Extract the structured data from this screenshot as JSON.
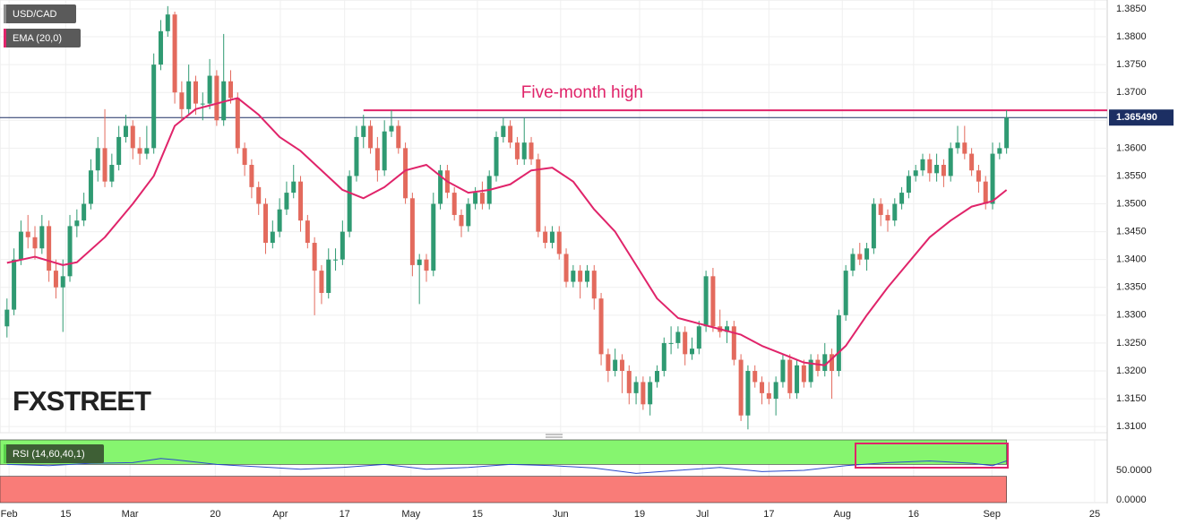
{
  "chart_data": [
    {
      "type": "candlestick",
      "name": "USD/CAD",
      "up_color": "#2f9a72",
      "down_color": "#e36a5d",
      "watermark": "FXSTREET",
      "xlim": [
        -1,
        157.4
      ],
      "ylim": [
        1.3089,
        1.3866
      ],
      "grid": true,
      "xticks": [
        {
          "value": 0.3,
          "label": "Feb"
        },
        {
          "value": 8.4,
          "label": "15"
        },
        {
          "value": 17.6,
          "label": "Mar"
        },
        {
          "value": 29.8,
          "label": "20"
        },
        {
          "value": 39.1,
          "label": "Apr"
        },
        {
          "value": 48.3,
          "label": "17"
        },
        {
          "value": 57.8,
          "label": "May"
        },
        {
          "value": 67.3,
          "label": "15"
        },
        {
          "value": 79.2,
          "label": "Jun"
        },
        {
          "value": 90.5,
          "label": "19"
        },
        {
          "value": 99.5,
          "label": "Jul"
        },
        {
          "value": 109,
          "label": "17"
        },
        {
          "value": 119.5,
          "label": "Aug"
        },
        {
          "value": 129.7,
          "label": "16"
        },
        {
          "value": 140.9,
          "label": "Sep"
        },
        {
          "value": 155.6,
          "label": "25"
        }
      ],
      "yticks": [
        {
          "value": 1.31,
          "label": "1.3100"
        },
        {
          "value": 1.315,
          "label": "1.3150"
        },
        {
          "value": 1.32,
          "label": "1.3200"
        },
        {
          "value": 1.325,
          "label": "1.3250"
        },
        {
          "value": 1.33,
          "label": "1.3300"
        },
        {
          "value": 1.335,
          "label": "1.3350"
        },
        {
          "value": 1.34,
          "label": "1.3400"
        },
        {
          "value": 1.345,
          "label": "1.3450"
        },
        {
          "value": 1.35,
          "label": "1.3500"
        },
        {
          "value": 1.355,
          "label": "1.3550"
        },
        {
          "value": 1.36,
          "label": "1.3600"
        },
        {
          "value": 1.365,
          "label": "1.3650"
        },
        {
          "value": 1.37,
          "label": "1.3700"
        },
        {
          "value": 1.375,
          "label": "1.3750"
        },
        {
          "value": 1.38,
          "label": "1.3800"
        },
        {
          "value": 1.385,
          "label": "1.3850"
        }
      ],
      "last_price": {
        "value": 1.36549,
        "label": "1.365490",
        "color": "#1c2f63"
      },
      "annotation": {
        "text": "Five-month high",
        "value": 1.3668,
        "x": 51,
        "color": "#e0246a"
      },
      "ema": {
        "name": "EMA (20,0)",
        "color": "#e0246a",
        "x": [
          0,
          4,
          8,
          10,
          14,
          18,
          21,
          24,
          27,
          30,
          33,
          36,
          39,
          42,
          45,
          48,
          51,
          54,
          57,
          60,
          63,
          66,
          69,
          72,
          75,
          78,
          81,
          84,
          87,
          90,
          93,
          96,
          99,
          102,
          105,
          108,
          111,
          114,
          117,
          120,
          123,
          126,
          129,
          132,
          135,
          138,
          141,
          143
        ],
        "values": [
          1.3394,
          1.3405,
          1.339,
          1.3395,
          1.344,
          1.35,
          1.355,
          1.364,
          1.367,
          1.368,
          1.369,
          1.366,
          1.362,
          1.3595,
          1.356,
          1.3525,
          1.351,
          1.353,
          1.356,
          1.357,
          1.354,
          1.352,
          1.3525,
          1.3535,
          1.356,
          1.3565,
          1.354,
          1.349,
          1.345,
          1.339,
          1.333,
          1.3295,
          1.3285,
          1.3275,
          1.3265,
          1.3245,
          1.323,
          1.3215,
          1.321,
          1.3245,
          1.33,
          1.335,
          1.3395,
          1.344,
          1.347,
          1.3495,
          1.3505,
          1.3525
        ]
      },
      "ohlc": [
        [
          1.328,
          1.333,
          1.326,
          1.331
        ],
        [
          1.331,
          1.342,
          1.33,
          1.34
        ],
        [
          1.34,
          1.347,
          1.339,
          1.345
        ],
        [
          1.345,
          1.348,
          1.342,
          1.344
        ],
        [
          1.344,
          1.346,
          1.34,
          1.342
        ],
        [
          1.342,
          1.348,
          1.341,
          1.346
        ],
        [
          1.346,
          1.347,
          1.336,
          1.338
        ],
        [
          1.338,
          1.34,
          1.333,
          1.335
        ],
        [
          1.335,
          1.34,
          1.327,
          1.337
        ],
        [
          1.337,
          1.348,
          1.336,
          1.346
        ],
        [
          1.346,
          1.349,
          1.344,
          1.347
        ],
        [
          1.347,
          1.352,
          1.346,
          1.35
        ],
        [
          1.35,
          1.358,
          1.349,
          1.356
        ],
        [
          1.356,
          1.362,
          1.354,
          1.36
        ],
        [
          1.36,
          1.367,
          1.353,
          1.354
        ],
        [
          1.354,
          1.359,
          1.353,
          1.357
        ],
        [
          1.357,
          1.364,
          1.356,
          1.362
        ],
        [
          1.362,
          1.366,
          1.361,
          1.364
        ],
        [
          1.364,
          1.365,
          1.358,
          1.36
        ],
        [
          1.36,
          1.362,
          1.357,
          1.359
        ],
        [
          1.359,
          1.364,
          1.358,
          1.36
        ],
        [
          1.36,
          1.377,
          1.359,
          1.375
        ],
        [
          1.375,
          1.383,
          1.374,
          1.381
        ],
        [
          1.381,
          1.3855,
          1.38,
          1.384
        ],
        [
          1.384,
          1.3845,
          1.368,
          1.37
        ],
        [
          1.37,
          1.372,
          1.365,
          1.367
        ],
        [
          1.367,
          1.375,
          1.366,
          1.372
        ],
        [
          1.372,
          1.373,
          1.366,
          1.368
        ],
        [
          1.368,
          1.37,
          1.365,
          1.368
        ],
        [
          1.368,
          1.376,
          1.367,
          1.373
        ],
        [
          1.373,
          1.374,
          1.364,
          1.365
        ],
        [
          1.365,
          1.3805,
          1.364,
          1.372
        ],
        [
          1.372,
          1.374,
          1.368,
          1.369
        ],
        [
          1.369,
          1.37,
          1.359,
          1.36
        ],
        [
          1.36,
          1.361,
          1.355,
          1.357
        ],
        [
          1.357,
          1.358,
          1.351,
          1.353
        ],
        [
          1.353,
          1.354,
          1.348,
          1.35
        ],
        [
          1.35,
          1.351,
          1.341,
          1.343
        ],
        [
          1.343,
          1.347,
          1.342,
          1.345
        ],
        [
          1.345,
          1.351,
          1.344,
          1.349
        ],
        [
          1.349,
          1.354,
          1.348,
          1.352
        ],
        [
          1.352,
          1.357,
          1.351,
          1.354
        ],
        [
          1.354,
          1.355,
          1.345,
          1.347
        ],
        [
          1.347,
          1.348,
          1.342,
          1.343
        ],
        [
          1.343,
          1.344,
          1.33,
          1.338
        ],
        [
          1.338,
          1.339,
          1.332,
          1.334
        ],
        [
          1.334,
          1.342,
          1.333,
          1.34
        ],
        [
          1.34,
          1.342,
          1.338,
          1.34
        ],
        [
          1.34,
          1.347,
          1.339,
          1.345
        ],
        [
          1.345,
          1.356,
          1.344,
          1.355
        ],
        [
          1.355,
          1.364,
          1.354,
          1.362
        ],
        [
          1.362,
          1.366,
          1.36,
          1.364
        ],
        [
          1.364,
          1.365,
          1.359,
          1.36
        ],
        [
          1.36,
          1.362,
          1.354,
          1.356
        ],
        [
          1.356,
          1.365,
          1.355,
          1.363
        ],
        [
          1.363,
          1.3668,
          1.362,
          1.364
        ],
        [
          1.364,
          1.365,
          1.359,
          1.36
        ],
        [
          1.36,
          1.361,
          1.35,
          1.351
        ],
        [
          1.351,
          1.352,
          1.337,
          1.339
        ],
        [
          1.339,
          1.341,
          1.332,
          1.34
        ],
        [
          1.34,
          1.341,
          1.336,
          1.338
        ],
        [
          1.338,
          1.352,
          1.337,
          1.35
        ],
        [
          1.35,
          1.357,
          1.349,
          1.356
        ],
        [
          1.356,
          1.357,
          1.351,
          1.352
        ],
        [
          1.352,
          1.353,
          1.347,
          1.348
        ],
        [
          1.348,
          1.349,
          1.344,
          1.346
        ],
        [
          1.346,
          1.351,
          1.345,
          1.35
        ],
        [
          1.35,
          1.353,
          1.349,
          1.352
        ],
        [
          1.352,
          1.354,
          1.349,
          1.35
        ],
        [
          1.35,
          1.356,
          1.349,
          1.355
        ],
        [
          1.355,
          1.363,
          1.354,
          1.362
        ],
        [
          1.362,
          1.3655,
          1.361,
          1.364
        ],
        [
          1.364,
          1.365,
          1.36,
          1.361
        ],
        [
          1.361,
          1.362,
          1.357,
          1.358
        ],
        [
          1.358,
          1.3655,
          1.357,
          1.361
        ],
        [
          1.361,
          1.362,
          1.357,
          1.358
        ],
        [
          1.358,
          1.359,
          1.344,
          1.345
        ],
        [
          1.345,
          1.346,
          1.342,
          1.343
        ],
        [
          1.343,
          1.346,
          1.342,
          1.345
        ],
        [
          1.345,
          1.346,
          1.34,
          1.341
        ],
        [
          1.341,
          1.342,
          1.335,
          1.336
        ],
        [
          1.336,
          1.339,
          1.335,
          1.338
        ],
        [
          1.338,
          1.339,
          1.333,
          1.336
        ],
        [
          1.336,
          1.339,
          1.335,
          1.338
        ],
        [
          1.338,
          1.339,
          1.331,
          1.333
        ],
        [
          1.333,
          1.334,
          1.321,
          1.323
        ],
        [
          1.323,
          1.324,
          1.318,
          1.32
        ],
        [
          1.32,
          1.324,
          1.319,
          1.322
        ],
        [
          1.322,
          1.323,
          1.316,
          1.32
        ],
        [
          1.32,
          1.321,
          1.314,
          1.316
        ],
        [
          1.316,
          1.319,
          1.314,
          1.318
        ],
        [
          1.318,
          1.319,
          1.313,
          1.314
        ],
        [
          1.314,
          1.319,
          1.312,
          1.318
        ],
        [
          1.318,
          1.321,
          1.317,
          1.32
        ],
        [
          1.32,
          1.326,
          1.319,
          1.325
        ],
        [
          1.325,
          1.328,
          1.323,
          1.325
        ],
        [
          1.325,
          1.328,
          1.324,
          1.327
        ],
        [
          1.327,
          1.328,
          1.321,
          1.323
        ],
        [
          1.323,
          1.326,
          1.322,
          1.324
        ],
        [
          1.324,
          1.329,
          1.323,
          1.328
        ],
        [
          1.328,
          1.338,
          1.327,
          1.337
        ],
        [
          1.337,
          1.3385,
          1.327,
          1.328
        ],
        [
          1.328,
          1.331,
          1.326,
          1.327
        ],
        [
          1.327,
          1.329,
          1.325,
          1.328
        ],
        [
          1.328,
          1.329,
          1.321,
          1.322
        ],
        [
          1.322,
          1.323,
          1.311,
          1.312
        ],
        [
          1.312,
          1.321,
          1.3095,
          1.32
        ],
        [
          1.32,
          1.321,
          1.317,
          1.318
        ],
        [
          1.318,
          1.319,
          1.314,
          1.316
        ],
        [
          1.316,
          1.318,
          1.314,
          1.315
        ],
        [
          1.315,
          1.319,
          1.312,
          1.318
        ],
        [
          1.318,
          1.323,
          1.317,
          1.322
        ],
        [
          1.322,
          1.323,
          1.315,
          1.316
        ],
        [
          1.316,
          1.322,
          1.315,
          1.321
        ],
        [
          1.321,
          1.322,
          1.317,
          1.318
        ],
        [
          1.318,
          1.323,
          1.317,
          1.322
        ],
        [
          1.322,
          1.323,
          1.319,
          1.32
        ],
        [
          1.32,
          1.325,
          1.319,
          1.323
        ],
        [
          1.323,
          1.324,
          1.315,
          1.32
        ],
        [
          1.32,
          1.331,
          1.319,
          1.33
        ],
        [
          1.33,
          1.339,
          1.329,
          1.338
        ],
        [
          1.338,
          1.342,
          1.337,
          1.341
        ],
        [
          1.341,
          1.343,
          1.339,
          1.34
        ],
        [
          1.34,
          1.343,
          1.338,
          1.342
        ],
        [
          1.342,
          1.351,
          1.341,
          1.35
        ],
        [
          1.35,
          1.351,
          1.346,
          1.348
        ],
        [
          1.348,
          1.349,
          1.345,
          1.347
        ],
        [
          1.347,
          1.351,
          1.346,
          1.35
        ],
        [
          1.35,
          1.353,
          1.349,
          1.352
        ],
        [
          1.352,
          1.356,
          1.351,
          1.355
        ],
        [
          1.355,
          1.357,
          1.354,
          1.356
        ],
        [
          1.356,
          1.359,
          1.355,
          1.358
        ],
        [
          1.358,
          1.359,
          1.354,
          1.3555
        ],
        [
          1.3555,
          1.359,
          1.354,
          1.357
        ],
        [
          1.357,
          1.358,
          1.353,
          1.355
        ],
        [
          1.355,
          1.361,
          1.354,
          1.36
        ],
        [
          1.36,
          1.364,
          1.359,
          1.361
        ],
        [
          1.361,
          1.364,
          1.358,
          1.359
        ],
        [
          1.359,
          1.36,
          1.355,
          1.356
        ],
        [
          1.356,
          1.357,
          1.352,
          1.354
        ],
        [
          1.354,
          1.355,
          1.349,
          1.35
        ],
        [
          1.35,
          1.361,
          1.349,
          1.359
        ],
        [
          1.359,
          1.361,
          1.358,
          1.36
        ],
        [
          1.36,
          1.3668,
          1.359,
          1.36549
        ]
      ]
    },
    {
      "type": "line",
      "name": "RSI (14,60,40,1)",
      "color": "#2b4acb",
      "ylim": [
        -4.5,
        101.5
      ],
      "yticks": [
        {
          "value": 0,
          "label": "0.0000"
        },
        {
          "value": 50,
          "label": "50.0000"
        }
      ],
      "overbought": 60,
      "oversold": 40,
      "overbought_color": "#86f56f",
      "oversold_color": "#f97c78",
      "x": [
        0,
        6,
        12,
        18,
        22,
        24,
        30,
        36,
        42,
        48,
        54,
        60,
        66,
        72,
        78,
        84,
        90,
        96,
        102,
        108,
        114,
        120,
        126,
        132,
        138,
        141,
        143
      ],
      "values": [
        60,
        58,
        62,
        63,
        70,
        68,
        60,
        56,
        52,
        55,
        60,
        52,
        55,
        60,
        58,
        54,
        45,
        50,
        55,
        48,
        50,
        58,
        63,
        66,
        62,
        58,
        66
      ]
    }
  ]
}
